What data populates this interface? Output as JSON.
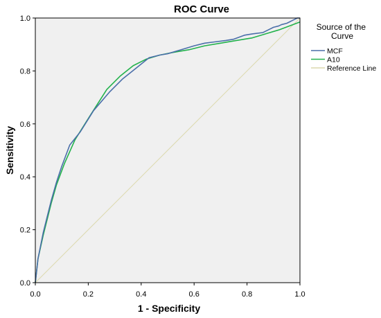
{
  "chart_data": {
    "type": "line",
    "title": "ROC Curve",
    "xlabel": "1 - Specificity",
    "ylabel": "Sensitivity",
    "xlim": [
      0,
      1
    ],
    "ylim": [
      0,
      1
    ],
    "x_ticks": [
      "0.0",
      "0.2",
      "0.4",
      "0.6",
      "0.8",
      "1.0"
    ],
    "y_ticks": [
      "0.0",
      "0.2",
      "0.4",
      "0.6",
      "0.8",
      "1.0"
    ],
    "grid": false,
    "legend": {
      "title": "Source of the Curve",
      "placement": "right"
    },
    "colors": {
      "plot_background": "#f0f0f0",
      "frame": "#000000"
    },
    "series": [
      {
        "name": "MCF",
        "color": "#4a6ea9",
        "x": [
          0,
          0.01,
          0.03,
          0.06,
          0.08,
          0.1,
          0.13,
          0.17,
          0.22,
          0.28,
          0.33,
          0.38,
          0.43,
          0.47,
          0.5,
          0.55,
          0.6,
          0.64,
          0.68,
          0.72,
          0.75,
          0.79,
          0.82,
          0.86,
          0.88,
          0.9,
          0.92,
          0.93,
          0.95,
          0.96,
          0.97,
          0.98,
          0.99,
          1.0
        ],
        "y": [
          0,
          0.09,
          0.19,
          0.31,
          0.38,
          0.44,
          0.52,
          0.57,
          0.65,
          0.72,
          0.77,
          0.81,
          0.85,
          0.86,
          0.865,
          0.88,
          0.895,
          0.905,
          0.91,
          0.915,
          0.92,
          0.935,
          0.94,
          0.945,
          0.955,
          0.965,
          0.97,
          0.975,
          0.98,
          0.985,
          0.99,
          0.995,
          1.0,
          1.0
        ]
      },
      {
        "name": "A10",
        "color": "#22b24c",
        "x": [
          0,
          0.01,
          0.03,
          0.06,
          0.08,
          0.11,
          0.15,
          0.2,
          0.27,
          0.32,
          0.37,
          0.42,
          0.47,
          0.52,
          0.58,
          0.64,
          0.7,
          0.76,
          0.82,
          0.87,
          0.92,
          0.96,
          1.0
        ],
        "y": [
          0,
          0.09,
          0.18,
          0.3,
          0.37,
          0.45,
          0.54,
          0.62,
          0.73,
          0.78,
          0.82,
          0.845,
          0.86,
          0.87,
          0.88,
          0.895,
          0.905,
          0.915,
          0.925,
          0.94,
          0.955,
          0.97,
          0.985
        ]
      },
      {
        "name": "Reference Line",
        "color": "#dcd9ae",
        "x": [
          0,
          1
        ],
        "y": [
          0,
          1
        ]
      }
    ]
  }
}
